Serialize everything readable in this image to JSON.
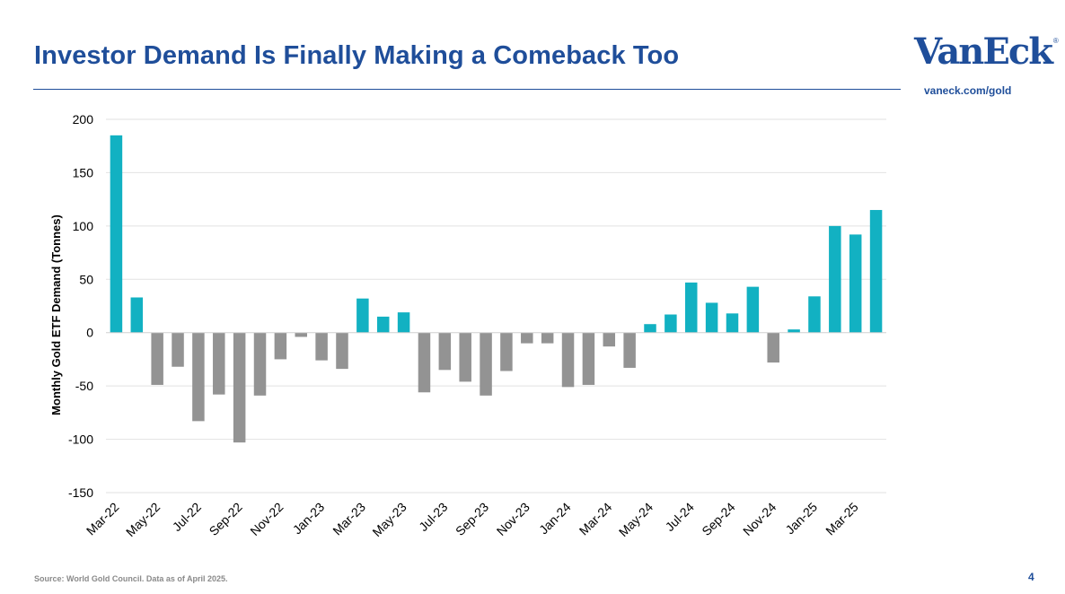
{
  "header": {
    "title": "Investor Demand Is Finally Making a Comeback Too",
    "logo_text": "VanEck",
    "logo_registered": "®",
    "url": "vaneck.com/gold"
  },
  "footer": {
    "source": "Source: World Gold Council. Data as of April 2025.",
    "page_number": "4"
  },
  "colors": {
    "brand": "#1f4e9a",
    "positive": "#12b1c2",
    "negative": "#939393",
    "grid": "#e2e2e2"
  },
  "chart_data": {
    "type": "bar",
    "title": "",
    "xlabel": "",
    "ylabel": "Monthly Gold ETF Demand (Tonnes)",
    "ylim": [
      -150,
      200
    ],
    "yticks": [
      -150,
      -100,
      -50,
      0,
      50,
      100,
      150,
      200
    ],
    "grid": true,
    "categories": [
      "Mar-22",
      "Apr-22",
      "May-22",
      "Jun-22",
      "Jul-22",
      "Aug-22",
      "Sep-22",
      "Oct-22",
      "Nov-22",
      "Dec-22",
      "Jan-23",
      "Feb-23",
      "Mar-23",
      "Apr-23",
      "May-23",
      "Jun-23",
      "Jul-23",
      "Aug-23",
      "Sep-23",
      "Oct-23",
      "Nov-23",
      "Dec-23",
      "Jan-24",
      "Feb-24",
      "Mar-24",
      "Apr-24",
      "May-24",
      "Jun-24",
      "Jul-24",
      "Aug-24",
      "Sep-24",
      "Oct-24",
      "Nov-24",
      "Dec-24",
      "Jan-25",
      "Feb-25",
      "Mar-25",
      "Apr-25"
    ],
    "x_tick_labels": [
      "Mar-22",
      "May-22",
      "Jul-22",
      "Sep-22",
      "Nov-22",
      "Jan-23",
      "Mar-23",
      "May-23",
      "Jul-23",
      "Sep-23",
      "Nov-23",
      "Jan-24",
      "Mar-24",
      "May-24",
      "Jul-24",
      "Sep-24",
      "Nov-24",
      "Jan-25",
      "Mar-25"
    ],
    "values": [
      185,
      33,
      -49,
      -32,
      -83,
      -58,
      -103,
      -59,
      -25,
      -4,
      -26,
      -34,
      32,
      15,
      19,
      -56,
      -35,
      -46,
      -59,
      -36,
      -10,
      -10,
      -51,
      -49,
      -13,
      -33,
      8,
      17,
      47,
      28,
      18,
      43,
      -28,
      3,
      34,
      100,
      92,
      115
    ]
  }
}
